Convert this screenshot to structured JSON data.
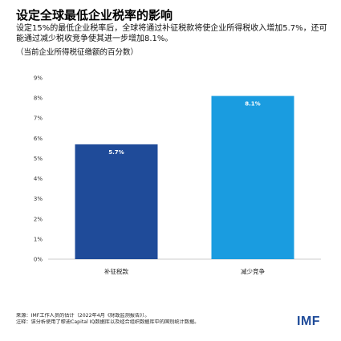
{
  "header": {
    "title": "设定全球最低企业税率的影响",
    "subtitle": "设定15%的最低企业税率后，全球将通过补征税款将使企业所得税收入增加5.7%，还可能通过减少税收竞争使其进一步增加8.1%。",
    "note": "（当前企业所得税征缴额的百分数）"
  },
  "chart_data": {
    "type": "bar",
    "categories": [
      "补征税款",
      "减少竞争"
    ],
    "values": [
      5.7,
      8.1
    ],
    "value_labels": [
      "5.7%",
      "8.1%"
    ],
    "ylim": [
      0,
      9
    ],
    "yticks": [
      "0%",
      "1%",
      "2%",
      "3%",
      "4%",
      "5%",
      "6%",
      "7%",
      "8%",
      "9%"
    ],
    "colors": [
      "#1f4b99",
      "#1a9ce0"
    ],
    "grid": false
  },
  "footer": {
    "source": "来源：IMF工作人员的估计（2022年4月《财政监测报告》）。",
    "note": "注释：该分析使用了穆迪Capital IQ数据库以及经合组织数据库中的国别统计数据。",
    "logo": "IMF"
  }
}
